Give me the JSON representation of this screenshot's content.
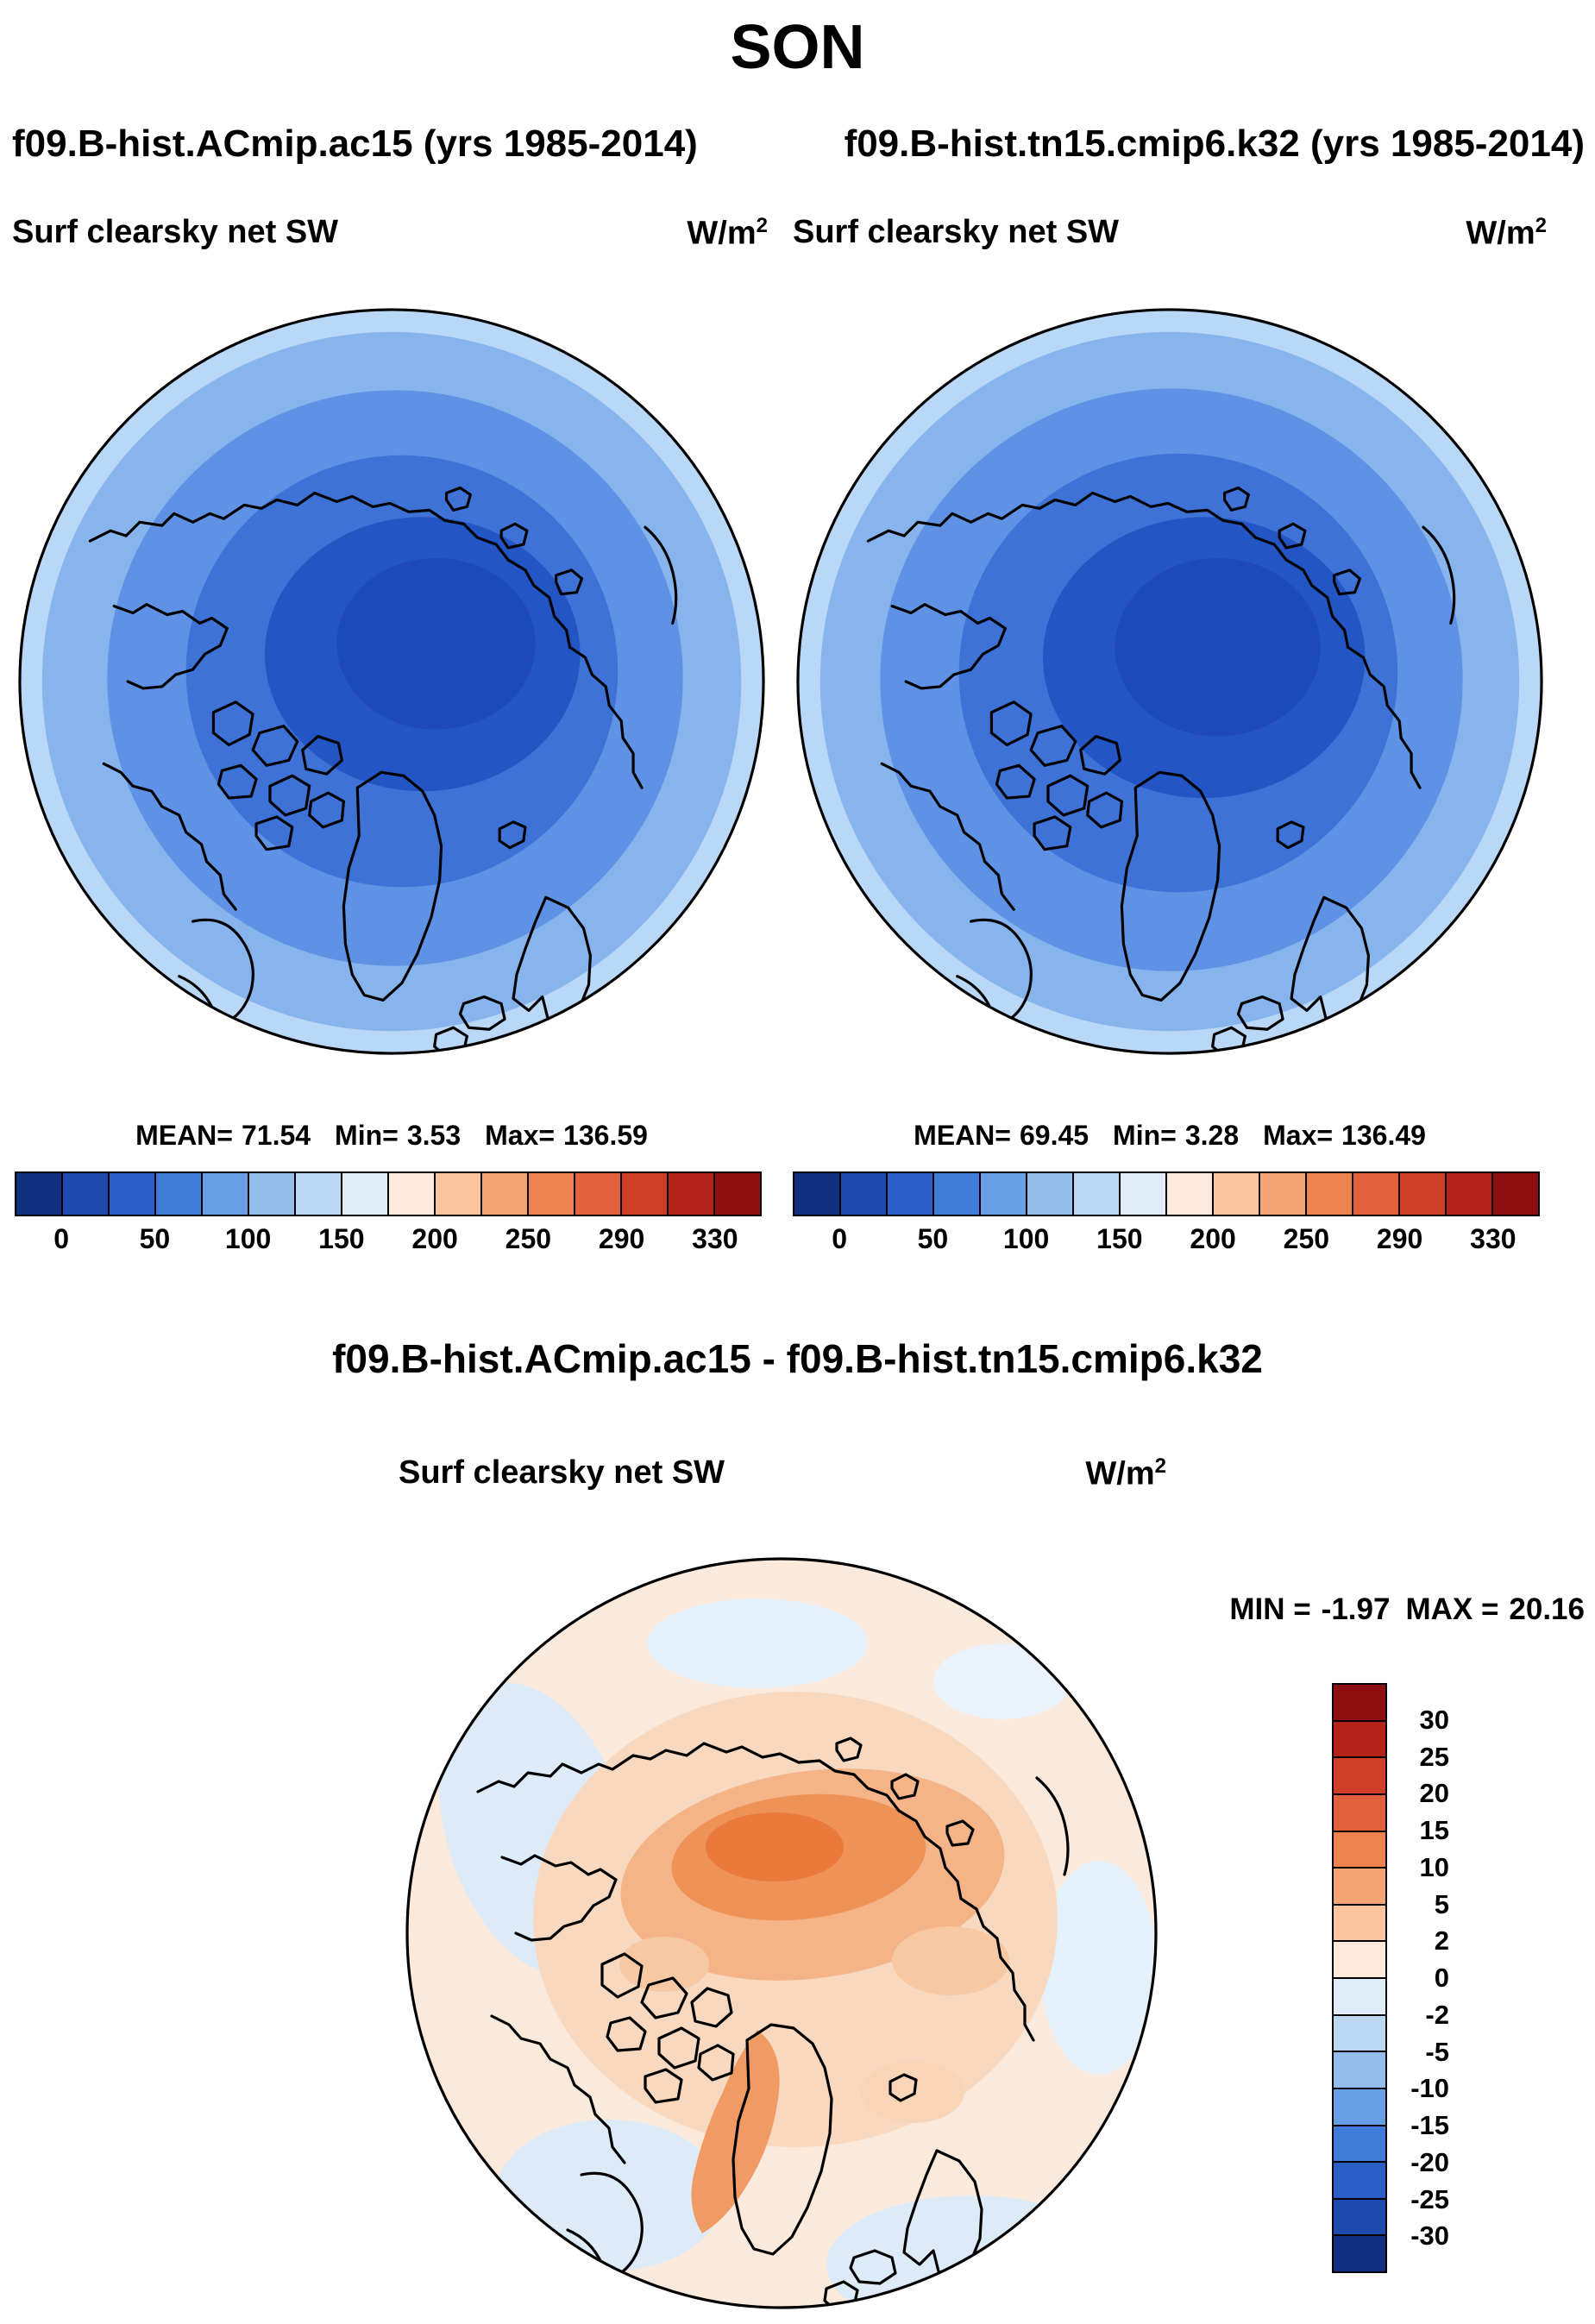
{
  "title": "SON",
  "header": {
    "left_run": "f09.B-hist.ACmip.ac15 (yrs 1985-2014)",
    "right_run": "f09.B-hist.tn15.cmip6.k32 (yrs 1985-2014)"
  },
  "panels": {
    "left": {
      "variable": "Surf clearsky net SW",
      "units_base": "W/m",
      "units_exp": "2",
      "stats": {
        "mean_label": "MEAN=",
        "mean": "71.54",
        "min_label": "Min=",
        "min": "3.53",
        "max_label": "Max=",
        "max": "136.59"
      }
    },
    "right": {
      "variable": "Surf clearsky net SW",
      "units_base": "W/m",
      "units_exp": "2",
      "stats": {
        "mean_label": "MEAN=",
        "mean": "69.45",
        "min_label": "Min=",
        "min": "3.28",
        "max_label": "Max=",
        "max": "136.49"
      }
    },
    "colorbar": {
      "ticks": [
        "0",
        "50",
        "100",
        "150",
        "200",
        "250",
        "290",
        "330"
      ],
      "colors": [
        "#12307f",
        "#1e49ae",
        "#2b5fc7",
        "#3f7cd9",
        "#699fe4",
        "#93bdeb",
        "#bcd7f1",
        "#e0edf8",
        "#fdeadd",
        "#f9c49e",
        "#f5a474",
        "#ee8350",
        "#e2603b",
        "#cf3f27",
        "#b5221a",
        "#8e0f12"
      ]
    }
  },
  "diff": {
    "title": "f09.B-hist.ACmip.ac15 - f09.B-hist.tn15.cmip6.k32",
    "variable": "Surf clearsky net SW",
    "units_base": "W/m",
    "units_exp": "2",
    "stats": {
      "min_label": "MIN =",
      "min": "-1.97",
      "max_label": "MAX =",
      "max": "20.16"
    },
    "colorbar": {
      "labels": [
        "30",
        "25",
        "20",
        "15",
        "10",
        "5",
        "2",
        "0",
        "-2",
        "-5",
        "-10",
        "-15",
        "-20",
        "-25",
        "-30"
      ],
      "colors": [
        "#8e0f12",
        "#b5221a",
        "#cf3f27",
        "#e2603b",
        "#ee8350",
        "#f5a474",
        "#f9c49e",
        "#fdeadd",
        "#e0edf8",
        "#bcd7f1",
        "#93bdeb",
        "#699fe4",
        "#3f7cd9",
        "#2b5fc7",
        "#1e49ae",
        "#12307f"
      ]
    }
  },
  "chart_data": [
    {
      "type": "heatmap",
      "subtype": "north-polar-stereographic-map",
      "title": "Surf clearsky net SW — f09.B-hist.ACmip.ac15 (yrs 1985-2014), SON",
      "units": "W/m^2",
      "stats": {
        "mean": 71.54,
        "min": 3.53,
        "max": 136.59
      },
      "colorbar_ticks": [
        0,
        50,
        100,
        150,
        200,
        250,
        290,
        330
      ],
      "n_color_segments": 16,
      "legend_position": "bottom",
      "pattern": "Low values (dark blue, ~0-50) over the central Arctic increasing outward to ~100-140 (light blue) at the map rim; coastlines overlaid"
    },
    {
      "type": "heatmap",
      "subtype": "north-polar-stereographic-map",
      "title": "Surf clearsky net SW — f09.B-hist.tn15.cmip6.k32 (yrs 1985-2014), SON",
      "units": "W/m^2",
      "stats": {
        "mean": 69.45,
        "min": 3.28,
        "max": 136.49
      },
      "colorbar_ticks": [
        0,
        50,
        100,
        150,
        200,
        250,
        290,
        330
      ],
      "n_color_segments": 16,
      "legend_position": "bottom",
      "pattern": "Nearly identical to the left panel: dark blue minimum at the pole, lighter blue toward the rim"
    },
    {
      "type": "heatmap",
      "subtype": "north-polar-stereographic-difference-map",
      "title": "Surf clearsky net SW — f09.B-hist.ACmip.ac15 minus f09.B-hist.tn15.cmip6.k32, SON",
      "units": "W/m^2",
      "stats": {
        "min": -1.97,
        "max": 20.16
      },
      "colorbar_levels": [
        30,
        25,
        20,
        15,
        10,
        5,
        2,
        0,
        -2,
        -5,
        -10,
        -15,
        -20,
        -25,
        -30
      ],
      "n_color_segments": 16,
      "legend_position": "right",
      "pattern": "Mostly small positive differences (0-2, pale peach) with orange maxima up to ~20 over the central Arctic and along east Greenland; scattered weak negatives (-2 to 0, pale blue) near the rim"
    }
  ]
}
